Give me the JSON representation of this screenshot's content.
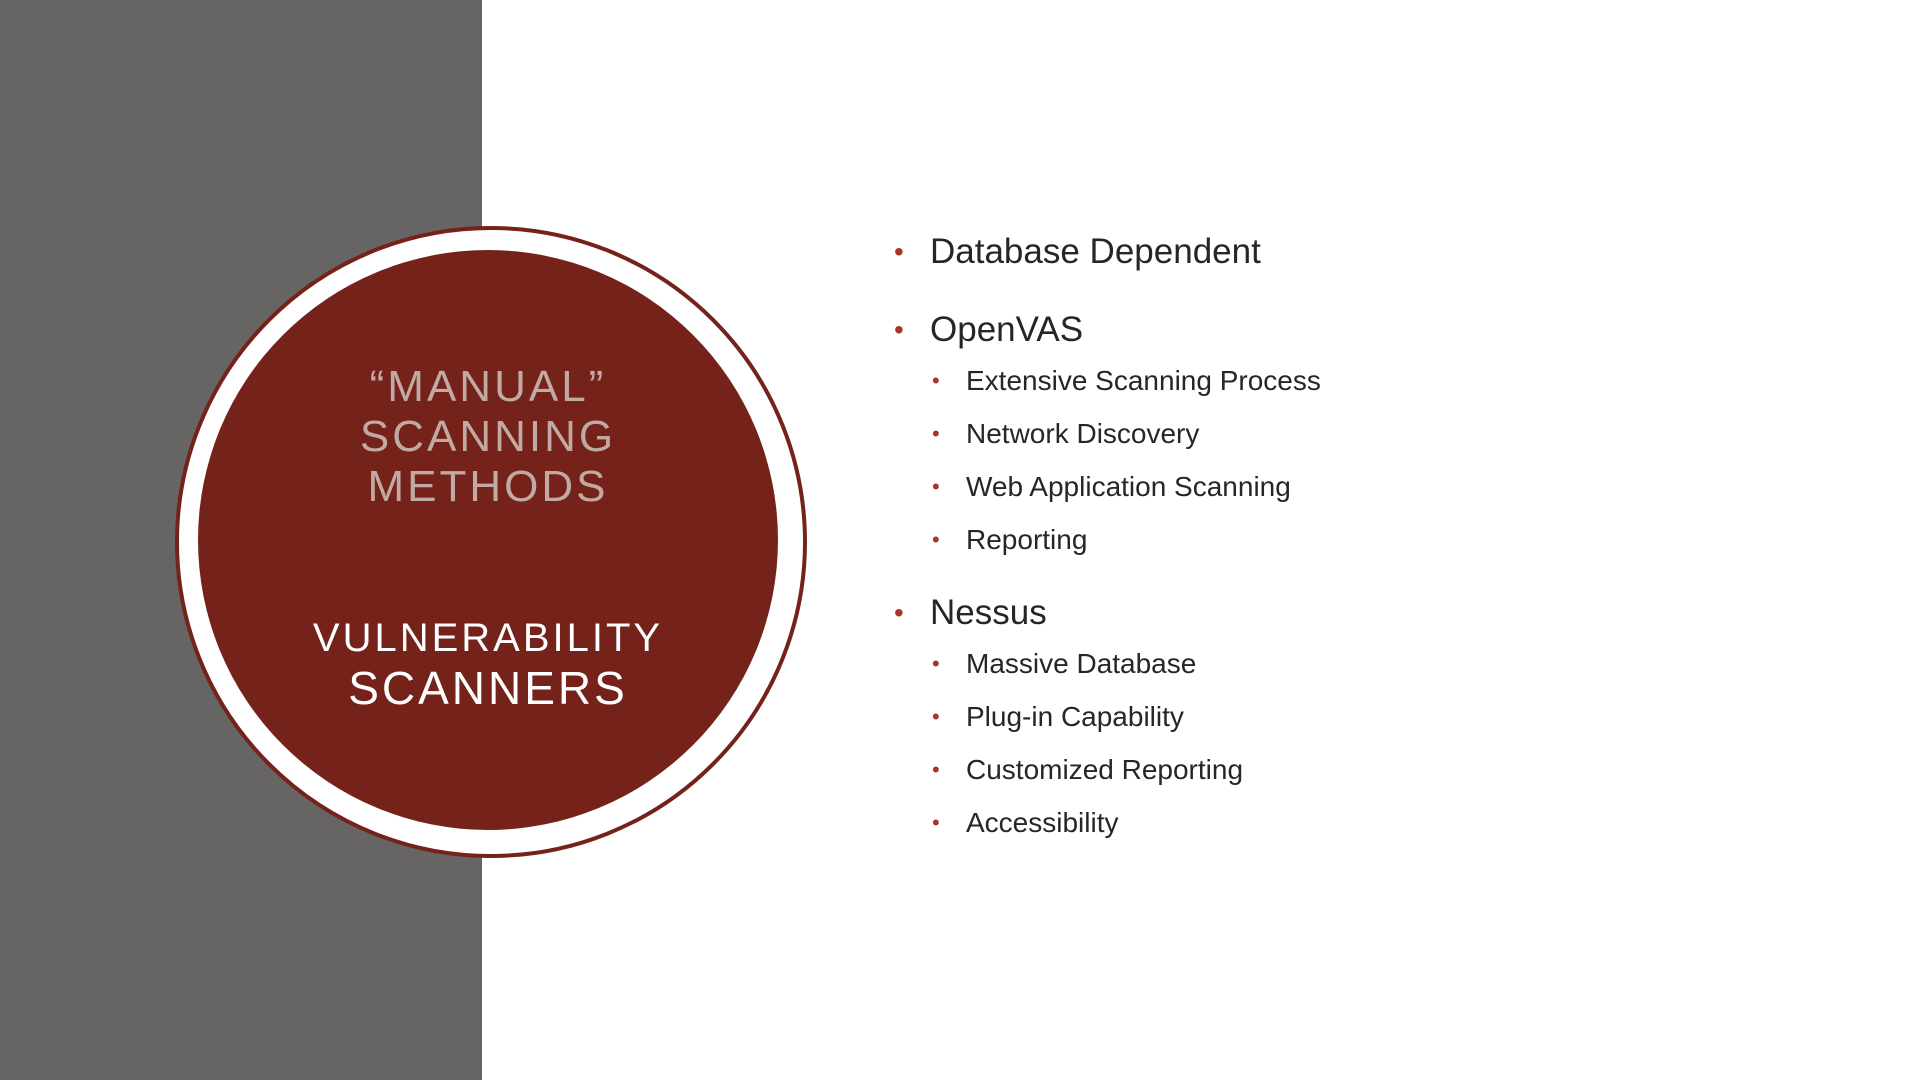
{
  "slide": {
    "circle": {
      "title_lines": [
        "“MANUAL”",
        "SCANNING",
        "METHODS"
      ],
      "subtitle_lines": [
        "VULNERABILITY",
        "SCANNERS"
      ]
    },
    "bullets": [
      {
        "text": "Database Dependent",
        "children": []
      },
      {
        "text": "OpenVAS",
        "children": [
          "Extensive Scanning Process",
          "Network Discovery",
          "Web Application Scanning",
          "Reporting"
        ]
      },
      {
        "text": "Nessus",
        "children": [
          "Massive Database",
          "Plug-in Capability",
          "Customized Reporting",
          "Accessibility"
        ]
      }
    ],
    "bullet_glyph": "•"
  },
  "colors": {
    "panel_gray": "#676464",
    "circle_red": "#74221a",
    "title_pink": "#c1a9a4",
    "bullet_red": "#a8362a",
    "body_text": "#262626"
  }
}
